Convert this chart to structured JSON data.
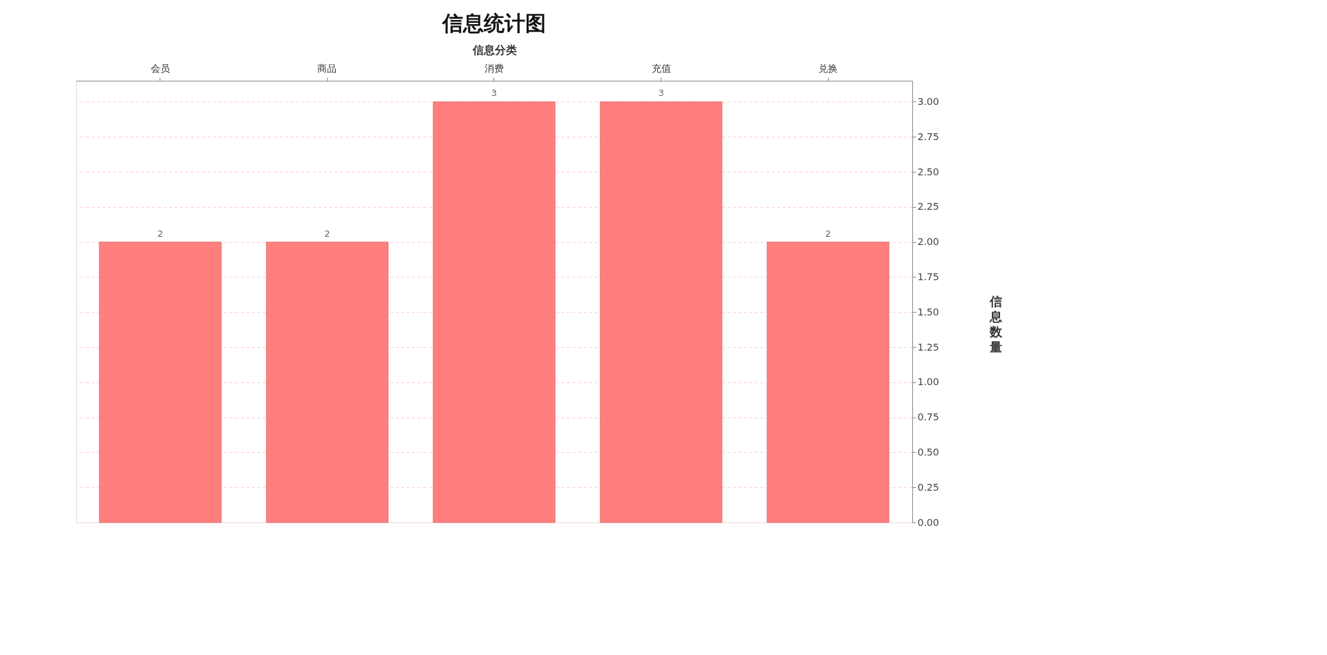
{
  "chart_data": {
    "type": "bar",
    "title": "信息统计图",
    "xlabel": "信息分类",
    "ylabel": "信息数量",
    "categories": [
      "会员",
      "商品",
      "消费",
      "充值",
      "兑换"
    ],
    "values": [
      2,
      2,
      3,
      3,
      2
    ],
    "color": "#ff7f7f",
    "data_labels": true,
    "ylim": [
      0,
      3.15
    ],
    "yticks": [
      {
        "value": 0,
        "label": "0.00"
      },
      {
        "value": 0.25,
        "label": "0.25"
      },
      {
        "value": 0.5,
        "label": "0.50"
      },
      {
        "value": 0.75,
        "label": "0.75"
      },
      {
        "value": 1,
        "label": "1.00"
      },
      {
        "value": 1.25,
        "label": "1.25"
      },
      {
        "value": 1.5,
        "label": "1.50"
      },
      {
        "value": 1.75,
        "label": "1.75"
      },
      {
        "value": 2,
        "label": "2.00"
      },
      {
        "value": 2.25,
        "label": "2.25"
      },
      {
        "value": 2.5,
        "label": "2.50"
      },
      {
        "value": 2.75,
        "label": "2.75"
      },
      {
        "value": 3,
        "label": "3.00"
      }
    ],
    "grid": "y"
  }
}
